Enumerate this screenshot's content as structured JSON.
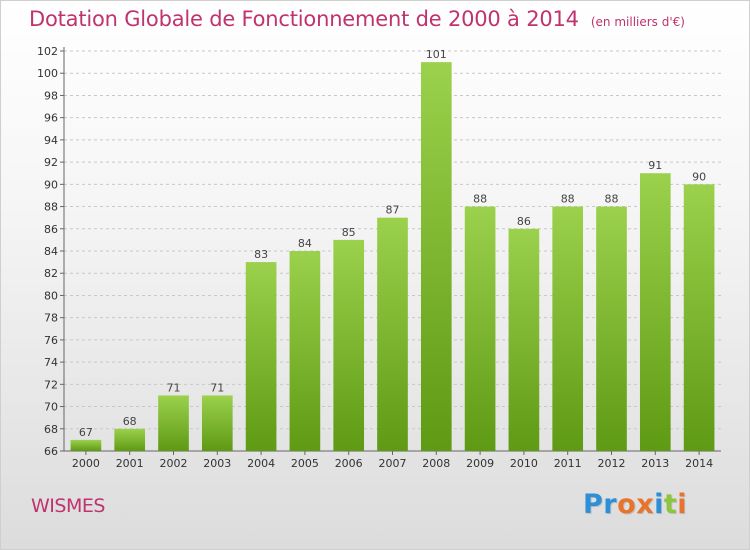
{
  "header": {
    "title": "Dotation Globale de Fonctionnement de 2000 à 2014",
    "subtitle": "(en milliers d'€)"
  },
  "footer": {
    "commune": "WISMES",
    "brand": "Proxiti"
  },
  "colors": {
    "title": "#c0336e",
    "bar_light": "#9bd14c",
    "bar_dark": "#5f9a14",
    "brand_letters": [
      "#2d8fd6",
      "#2d8fd6",
      "#e8742c",
      "#e8742c",
      "#2d8fd6",
      "#8cc63f",
      "#e8742c"
    ]
  },
  "chart_data": {
    "type": "bar",
    "title": "Dotation Globale de Fonctionnement de 2000 à 2014",
    "subtitle": "(en milliers d'€)",
    "xlabel": "",
    "ylabel": "",
    "categories": [
      "2000",
      "2001",
      "2002",
      "2003",
      "2004",
      "2005",
      "2006",
      "2007",
      "2008",
      "2009",
      "2010",
      "2011",
      "2012",
      "2013",
      "2014"
    ],
    "values": [
      67,
      68,
      71,
      71,
      83,
      84,
      85,
      87,
      101,
      88,
      86,
      88,
      88,
      91,
      90
    ],
    "ylim": [
      66,
      102
    ],
    "yticks": [
      66,
      68,
      70,
      72,
      74,
      76,
      78,
      80,
      82,
      84,
      86,
      88,
      90,
      92,
      94,
      96,
      98,
      100,
      102
    ],
    "grid": "horizontal dashed",
    "legend": "none",
    "data_labels": true
  }
}
